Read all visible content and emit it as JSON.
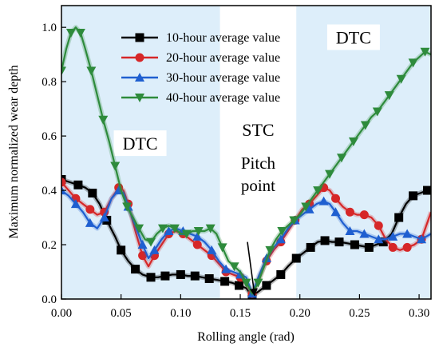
{
  "chart_data": {
    "type": "line",
    "xlabel": "Rolling angle (rad)",
    "ylabel": "Maximum normalized wear depth",
    "xlim": [
      0,
      0.31
    ],
    "ylim": [
      0,
      1.08
    ],
    "x_ticks": [
      0.0,
      0.05,
      0.1,
      0.15,
      0.2,
      0.25,
      0.3
    ],
    "x_tick_labels": [
      "0.00",
      "0.05",
      "0.10",
      "0.15",
      "0.20",
      "0.25",
      "0.30"
    ],
    "y_ticks": [
      0.0,
      0.2,
      0.4,
      0.6,
      0.8,
      1.0
    ],
    "y_tick_labels": [
      "0.0",
      "0.2",
      "0.4",
      "0.6",
      "0.8",
      "1.0"
    ],
    "grid": false,
    "legend_position": "top-center",
    "regions": [
      {
        "label": "DTC",
        "x_start": 0.0,
        "x_end": 0.133,
        "color": "#ddeefa",
        "label_x": 0.066,
        "label_y": 0.55
      },
      {
        "label": "STC",
        "x_start": 0.133,
        "x_end": 0.197,
        "color": "#ffffff",
        "label_x": 0.165,
        "label_y": 0.6
      },
      {
        "label": "DTC",
        "x_start": 0.197,
        "x_end": 0.31,
        "color": "#ddeefa",
        "label_x": 0.245,
        "label_y": 0.94
      }
    ],
    "annotations": [
      {
        "lines": [
          "Pitch",
          "point"
        ],
        "x": 0.165,
        "y": 0.48,
        "arrow_from": [
          0.156,
          0.21
        ],
        "arrow_to": [
          0.162,
          0.015
        ]
      }
    ],
    "series": [
      {
        "name": "10-hour average value",
        "color": "#000000",
        "marker": "square",
        "x": [
          0.0,
          0.007,
          0.014,
          0.02,
          0.026,
          0.032,
          0.038,
          0.045,
          0.05,
          0.056,
          0.062,
          0.068,
          0.075,
          0.081,
          0.087,
          0.093,
          0.1,
          0.106,
          0.112,
          0.118,
          0.124,
          0.131,
          0.137,
          0.143,
          0.149,
          0.155,
          0.16,
          0.166,
          0.172,
          0.178,
          0.184,
          0.19,
          0.197,
          0.203,
          0.209,
          0.215,
          0.221,
          0.227,
          0.233,
          0.24,
          0.246,
          0.252,
          0.258,
          0.264,
          0.27,
          0.277,
          0.283,
          0.289,
          0.295,
          0.301,
          0.307,
          0.31
        ],
        "y": [
          0.44,
          0.43,
          0.42,
          0.41,
          0.39,
          0.35,
          0.29,
          0.23,
          0.18,
          0.14,
          0.11,
          0.09,
          0.08,
          0.08,
          0.085,
          0.09,
          0.09,
          0.085,
          0.085,
          0.08,
          0.075,
          0.07,
          0.065,
          0.06,
          0.05,
          0.04,
          0.01,
          0.03,
          0.05,
          0.07,
          0.09,
          0.12,
          0.15,
          0.17,
          0.19,
          0.21,
          0.215,
          0.21,
          0.21,
          0.205,
          0.2,
          0.195,
          0.19,
          0.2,
          0.21,
          0.24,
          0.3,
          0.35,
          0.38,
          0.39,
          0.4,
          0.4
        ]
      },
      {
        "name": "20-hour average value",
        "color": "#d62728",
        "marker": "circle",
        "x": [
          0.0,
          0.006,
          0.012,
          0.018,
          0.024,
          0.03,
          0.036,
          0.042,
          0.048,
          0.052,
          0.056,
          0.062,
          0.068,
          0.073,
          0.078,
          0.084,
          0.09,
          0.096,
          0.102,
          0.108,
          0.114,
          0.12,
          0.126,
          0.132,
          0.138,
          0.144,
          0.15,
          0.155,
          0.16,
          0.166,
          0.172,
          0.178,
          0.184,
          0.19,
          0.196,
          0.202,
          0.208,
          0.214,
          0.22,
          0.225,
          0.23,
          0.236,
          0.242,
          0.248,
          0.254,
          0.26,
          0.266,
          0.272,
          0.278,
          0.284,
          0.29,
          0.296,
          0.302,
          0.31
        ],
        "y": [
          0.43,
          0.4,
          0.37,
          0.35,
          0.33,
          0.31,
          0.32,
          0.37,
          0.41,
          0.4,
          0.35,
          0.25,
          0.16,
          0.12,
          0.16,
          0.2,
          0.24,
          0.25,
          0.24,
          0.22,
          0.2,
          0.18,
          0.16,
          0.13,
          0.1,
          0.09,
          0.08,
          0.06,
          0.02,
          0.08,
          0.14,
          0.18,
          0.21,
          0.25,
          0.29,
          0.33,
          0.35,
          0.38,
          0.41,
          0.4,
          0.37,
          0.34,
          0.32,
          0.31,
          0.31,
          0.3,
          0.27,
          0.22,
          0.19,
          0.18,
          0.19,
          0.2,
          0.22,
          0.32
        ]
      },
      {
        "name": "30-hour average value",
        "color": "#1f5fd0",
        "marker": "triangle-up",
        "x": [
          0.0,
          0.006,
          0.012,
          0.018,
          0.024,
          0.03,
          0.036,
          0.042,
          0.048,
          0.052,
          0.056,
          0.062,
          0.068,
          0.073,
          0.078,
          0.084,
          0.09,
          0.096,
          0.102,
          0.108,
          0.114,
          0.12,
          0.126,
          0.132,
          0.138,
          0.144,
          0.15,
          0.155,
          0.16,
          0.166,
          0.172,
          0.178,
          0.184,
          0.19,
          0.196,
          0.202,
          0.208,
          0.214,
          0.22,
          0.225,
          0.23,
          0.236,
          0.242,
          0.248,
          0.254,
          0.26,
          0.266,
          0.272,
          0.278,
          0.284,
          0.29,
          0.296,
          0.302,
          0.31
        ],
        "y": [
          0.4,
          0.38,
          0.35,
          0.32,
          0.28,
          0.26,
          0.3,
          0.37,
          0.4,
          0.39,
          0.34,
          0.27,
          0.2,
          0.15,
          0.18,
          0.22,
          0.25,
          0.26,
          0.25,
          0.24,
          0.23,
          0.21,
          0.18,
          0.14,
          0.11,
          0.1,
          0.09,
          0.08,
          0.02,
          0.09,
          0.15,
          0.19,
          0.22,
          0.26,
          0.29,
          0.31,
          0.33,
          0.35,
          0.36,
          0.35,
          0.32,
          0.28,
          0.25,
          0.25,
          0.24,
          0.23,
          0.22,
          0.22,
          0.23,
          0.24,
          0.24,
          0.23,
          0.22,
          0.24
        ]
      },
      {
        "name": "40-hour average value",
        "color": "#2e8b3c",
        "marker": "triangle-down",
        "x": [
          0.0,
          0.004,
          0.008,
          0.012,
          0.016,
          0.02,
          0.025,
          0.03,
          0.035,
          0.04,
          0.045,
          0.05,
          0.055,
          0.06,
          0.065,
          0.07,
          0.075,
          0.08,
          0.085,
          0.09,
          0.095,
          0.1,
          0.105,
          0.11,
          0.115,
          0.12,
          0.125,
          0.13,
          0.135,
          0.14,
          0.145,
          0.15,
          0.155,
          0.16,
          0.165,
          0.17,
          0.175,
          0.18,
          0.185,
          0.19,
          0.195,
          0.2,
          0.205,
          0.21,
          0.215,
          0.22,
          0.225,
          0.23,
          0.235,
          0.24,
          0.245,
          0.25,
          0.255,
          0.26,
          0.265,
          0.27,
          0.275,
          0.28,
          0.285,
          0.29,
          0.295,
          0.3,
          0.305,
          0.31
        ],
        "y": [
          0.84,
          0.92,
          0.98,
          1.0,
          0.98,
          0.92,
          0.84,
          0.75,
          0.66,
          0.58,
          0.49,
          0.4,
          0.34,
          0.3,
          0.26,
          0.22,
          0.21,
          0.24,
          0.26,
          0.27,
          0.26,
          0.24,
          0.24,
          0.25,
          0.25,
          0.25,
          0.26,
          0.24,
          0.19,
          0.14,
          0.12,
          0.1,
          0.06,
          0.02,
          0.06,
          0.12,
          0.18,
          0.22,
          0.25,
          0.27,
          0.29,
          0.31,
          0.34,
          0.37,
          0.4,
          0.43,
          0.46,
          0.49,
          0.52,
          0.55,
          0.58,
          0.61,
          0.64,
          0.67,
          0.69,
          0.72,
          0.75,
          0.78,
          0.81,
          0.84,
          0.87,
          0.89,
          0.91,
          0.9
        ]
      }
    ]
  }
}
